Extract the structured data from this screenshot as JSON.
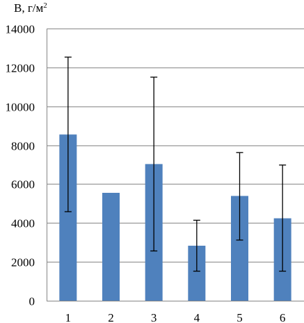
{
  "chart_data": {
    "type": "bar",
    "ylabel": "B, г/м",
    "ylabel_superscript": "2",
    "categories": [
      "1",
      "2",
      "3",
      "4",
      "5",
      "6"
    ],
    "values": [
      8550,
      5550,
      7030,
      2830,
      5390,
      4240
    ],
    "error_bars": [
      {
        "low": 4580,
        "high": 12530
      },
      null,
      {
        "low": 2560,
        "high": 11500
      },
      {
        "low": 1520,
        "high": 4140
      },
      {
        "low": 3120,
        "high": 7620
      },
      {
        "low": 1520,
        "high": 6980
      }
    ],
    "ylim": [
      0,
      14000
    ],
    "yticks": [
      0,
      2000,
      4000,
      6000,
      8000,
      10000,
      12000,
      14000
    ],
    "grid": true,
    "bar_color": "#4f81bd",
    "grid_color": "#868686"
  }
}
